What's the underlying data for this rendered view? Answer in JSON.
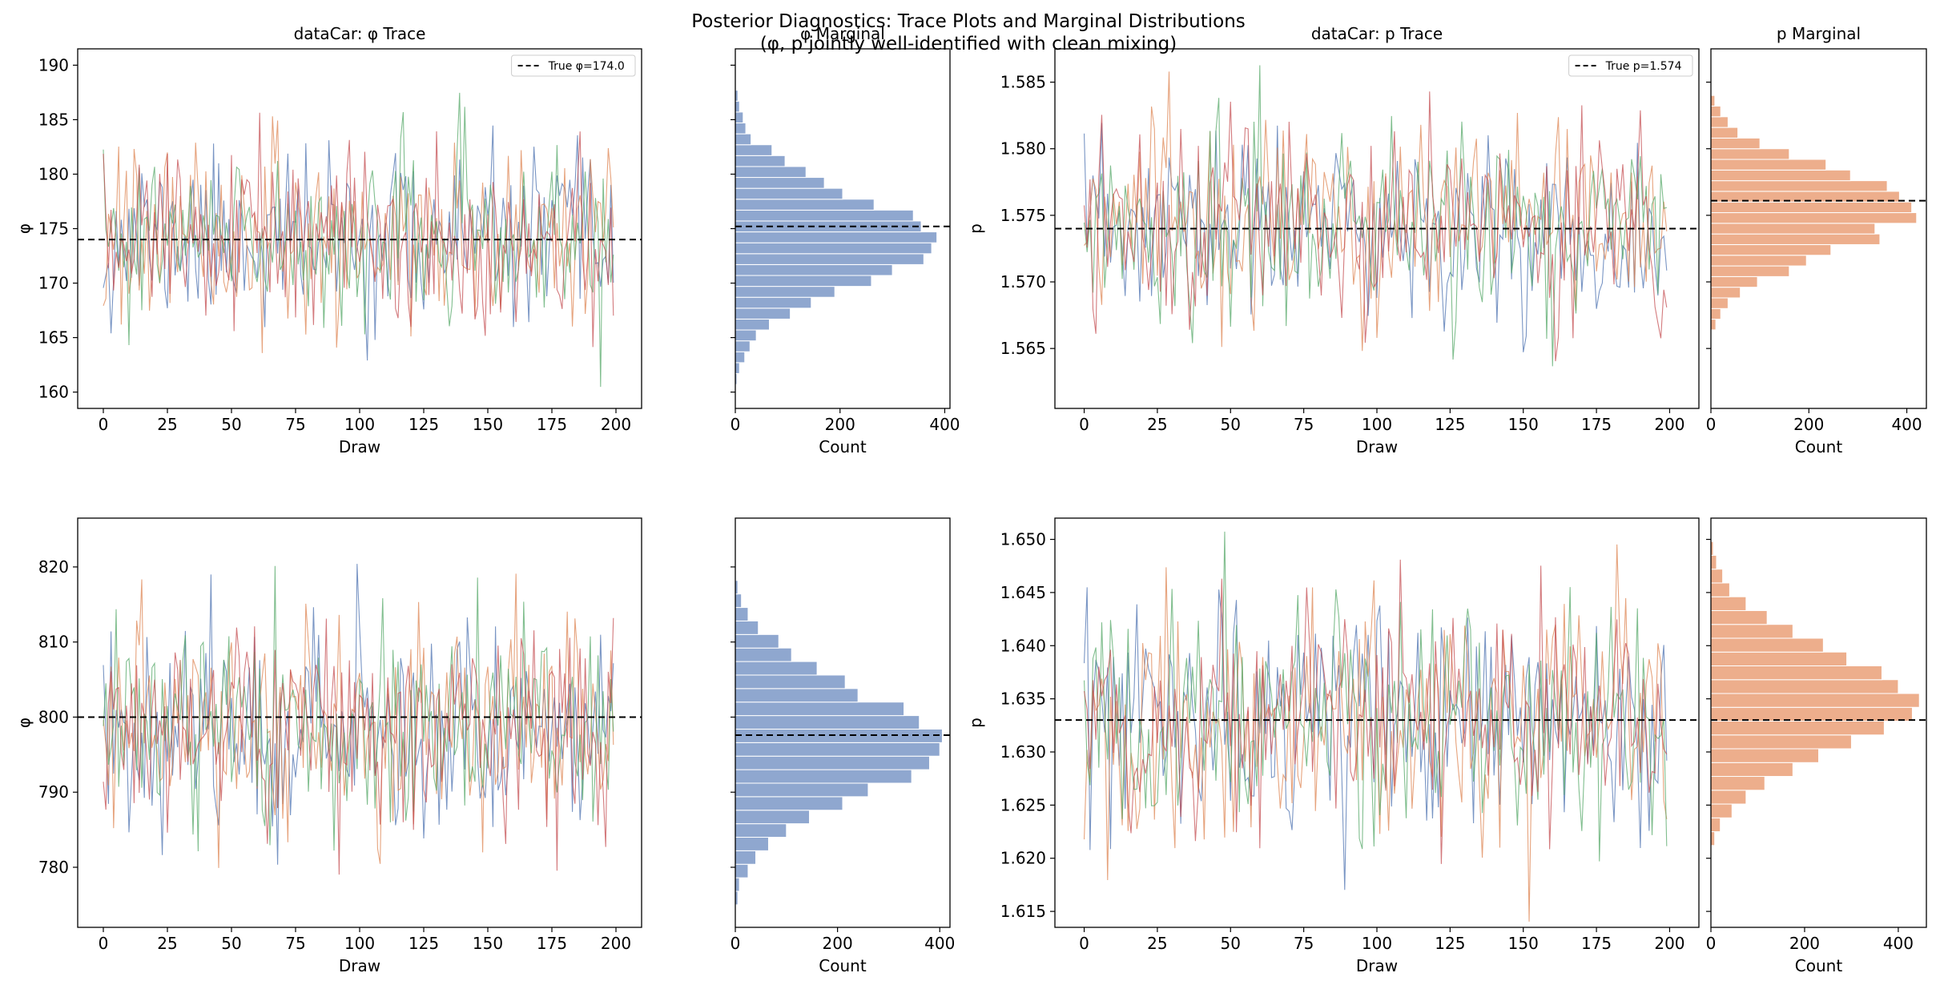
{
  "figure": {
    "suptitle_line1": "Posterior Diagnostics: Trace Plots and Marginal Distributions",
    "suptitle_line2": "(φ, p jointly well-identified with clean mixing)"
  },
  "colors": {
    "chains": [
      "#4c72b0",
      "#dd8452",
      "#55a868",
      "#c44e52"
    ],
    "phi_hist": "#8fa7cf",
    "p_hist": "#edae8c",
    "true_line": "#000000"
  },
  "chart_data": [
    {
      "id": "phi_trace_top",
      "type": "line",
      "title": "dataCar: φ Trace",
      "xlabel": "Draw",
      "ylabel": "φ",
      "xlim": [
        -10,
        210
      ],
      "ylim": [
        158.5,
        191.5
      ],
      "xticks": [
        0,
        25,
        50,
        75,
        100,
        125,
        150,
        175,
        200
      ],
      "yticks": [
        160,
        165,
        170,
        175,
        180,
        185,
        190
      ],
      "n_draws": 200,
      "n_chains": 4,
      "center": 174.0,
      "sd": 3.9,
      "seed": 11,
      "true_value": 174.0,
      "legend": "True φ=174.0",
      "legend_position": "top-right"
    },
    {
      "id": "phi_marg_top",
      "type": "bar",
      "orientation": "horizontal",
      "title": "φ Marginal",
      "xlabel": "Count",
      "xlim": [
        0,
        410
      ],
      "ylim": [
        158.5,
        191.5
      ],
      "xticks": [
        0,
        200,
        400
      ],
      "yticks": [
        160,
        165,
        170,
        175,
        180,
        185,
        190
      ],
      "bin_start": 160.7,
      "bin_width": 1.0,
      "counts": [
        3,
        8,
        18,
        28,
        40,
        65,
        105,
        145,
        190,
        260,
        300,
        360,
        375,
        385,
        355,
        340,
        265,
        205,
        170,
        135,
        95,
        70,
        30,
        20,
        15,
        8,
        5
      ],
      "ref_line": 175.2,
      "color": "phi_hist"
    },
    {
      "id": "p_trace_top",
      "type": "line",
      "title": "dataCar: p Trace",
      "xlabel": "Draw",
      "ylabel": "p",
      "xlim": [
        -10,
        210
      ],
      "ylim": [
        1.5605,
        1.5875
      ],
      "xticks": [
        0,
        25,
        50,
        75,
        100,
        125,
        150,
        175,
        200
      ],
      "yticks": [
        1.565,
        1.57,
        1.575,
        1.58,
        1.585
      ],
      "n_draws": 200,
      "n_chains": 4,
      "center": 1.574,
      "sd": 0.0036,
      "seed": 23,
      "true_value": 1.574,
      "legend": "True p=1.574",
      "legend_position": "top-right"
    },
    {
      "id": "p_marg_top",
      "type": "bar",
      "orientation": "horizontal",
      "title": "p Marginal",
      "xlabel": "Count",
      "xlim": [
        0,
        440
      ],
      "ylim": [
        1.5605,
        1.5875
      ],
      "xticks": [
        0,
        200,
        400
      ],
      "yticks": [
        1.565,
        1.57,
        1.575,
        1.58,
        1.585
      ],
      "bin_start": 1.5664,
      "bin_width": 0.0008,
      "counts": [
        10,
        20,
        35,
        60,
        95,
        160,
        195,
        245,
        345,
        335,
        420,
        410,
        385,
        360,
        285,
        235,
        160,
        100,
        55,
        35,
        20,
        8
      ],
      "ref_line": 1.5761,
      "color": "p_hist"
    },
    {
      "id": "phi_trace_bottom",
      "type": "line",
      "title": "",
      "xlabel": "Draw",
      "ylabel": "φ",
      "xlim": [
        -10,
        210
      ],
      "ylim": [
        772,
        826.5
      ],
      "xticks": [
        0,
        25,
        50,
        75,
        100,
        125,
        150,
        175,
        200
      ],
      "yticks": [
        780,
        790,
        800,
        810,
        820
      ],
      "n_draws": 200,
      "n_chains": 4,
      "center": 799.0,
      "sd": 6.9,
      "seed": 37,
      "true_value": 800.0
    },
    {
      "id": "phi_marg_bottom",
      "type": "bar",
      "orientation": "horizontal",
      "title": "",
      "xlabel": "Count",
      "xlim": [
        0,
        420
      ],
      "ylim": [
        772,
        826.5
      ],
      "xticks": [
        0,
        200,
        400
      ],
      "yticks": [
        780,
        790,
        800,
        810,
        820
      ],
      "bin_start": 775.0,
      "bin_width": 1.8,
      "counts": [
        5,
        8,
        25,
        40,
        65,
        100,
        145,
        210,
        260,
        345,
        380,
        400,
        405,
        360,
        330,
        240,
        215,
        160,
        110,
        85,
        45,
        25,
        12,
        5
      ],
      "ref_line": 797.6,
      "color": "phi_hist"
    },
    {
      "id": "p_trace_bottom",
      "type": "line",
      "title": "",
      "xlabel": "Draw",
      "ylabel": "p",
      "xlim": [
        -10,
        210
      ],
      "ylim": [
        1.6135,
        1.652
      ],
      "xticks": [
        0,
        25,
        50,
        75,
        100,
        125,
        150,
        175,
        200
      ],
      "yticks": [
        1.615,
        1.62,
        1.625,
        1.63,
        1.635,
        1.64,
        1.645,
        1.65
      ],
      "n_draws": 200,
      "n_chains": 4,
      "center": 1.6328,
      "sd": 0.0055,
      "seed": 53,
      "true_value": 1.633
    },
    {
      "id": "p_marg_bottom",
      "type": "bar",
      "orientation": "horizontal",
      "title": "",
      "xlabel": "Count",
      "xlim": [
        0,
        460
      ],
      "ylim": [
        1.6135,
        1.652
      ],
      "xticks": [
        0,
        200,
        400
      ],
      "yticks": [
        1.615,
        1.62,
        1.625,
        1.63,
        1.635,
        1.64,
        1.645,
        1.65
      ],
      "bin_start": 1.6212,
      "bin_width": 0.0013,
      "counts": [
        8,
        20,
        45,
        75,
        115,
        175,
        230,
        300,
        370,
        430,
        445,
        400,
        365,
        290,
        240,
        175,
        120,
        75,
        40,
        25,
        12,
        5
      ],
      "ref_line": 1.633,
      "color": "p_hist"
    }
  ]
}
